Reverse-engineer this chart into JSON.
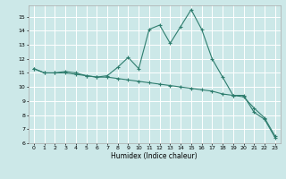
{
  "xlabel": "Humidex (Indice chaleur)",
  "bg_color": "#cce8e8",
  "line_color": "#2e7d6e",
  "grid_color": "#ffffff",
  "xlim": [
    -0.5,
    23.5
  ],
  "ylim": [
    6,
    15.8
  ],
  "yticks": [
    6,
    7,
    8,
    9,
    10,
    11,
    12,
    13,
    14,
    15
  ],
  "xticks": [
    0,
    1,
    2,
    3,
    4,
    5,
    6,
    7,
    8,
    9,
    10,
    11,
    12,
    13,
    14,
    15,
    16,
    17,
    18,
    19,
    20,
    21,
    22,
    23
  ],
  "curve1_x": [
    0,
    1,
    2,
    3,
    4,
    5,
    6,
    7,
    8,
    9,
    10,
    11,
    12,
    13,
    14,
    15,
    16,
    17,
    18,
    19,
    20,
    21,
    22,
    23
  ],
  "curve1_y": [
    11.3,
    11.0,
    11.0,
    11.1,
    11.0,
    10.8,
    10.7,
    10.8,
    11.4,
    12.1,
    11.3,
    14.1,
    14.4,
    13.1,
    14.3,
    15.5,
    14.1,
    12.0,
    10.7,
    9.4,
    9.4,
    8.2,
    7.7,
    6.4
  ],
  "curve2_x": [
    0,
    1,
    2,
    3,
    4,
    5,
    6,
    7,
    8,
    9,
    10,
    11,
    12,
    13,
    14,
    15,
    16,
    17,
    18,
    19,
    20,
    21,
    22,
    23
  ],
  "curve2_y": [
    11.3,
    11.0,
    11.0,
    11.0,
    10.9,
    10.8,
    10.7,
    10.7,
    10.6,
    10.5,
    10.4,
    10.3,
    10.2,
    10.1,
    10.0,
    9.9,
    9.8,
    9.7,
    9.5,
    9.4,
    9.3,
    8.5,
    7.8,
    6.5
  ]
}
